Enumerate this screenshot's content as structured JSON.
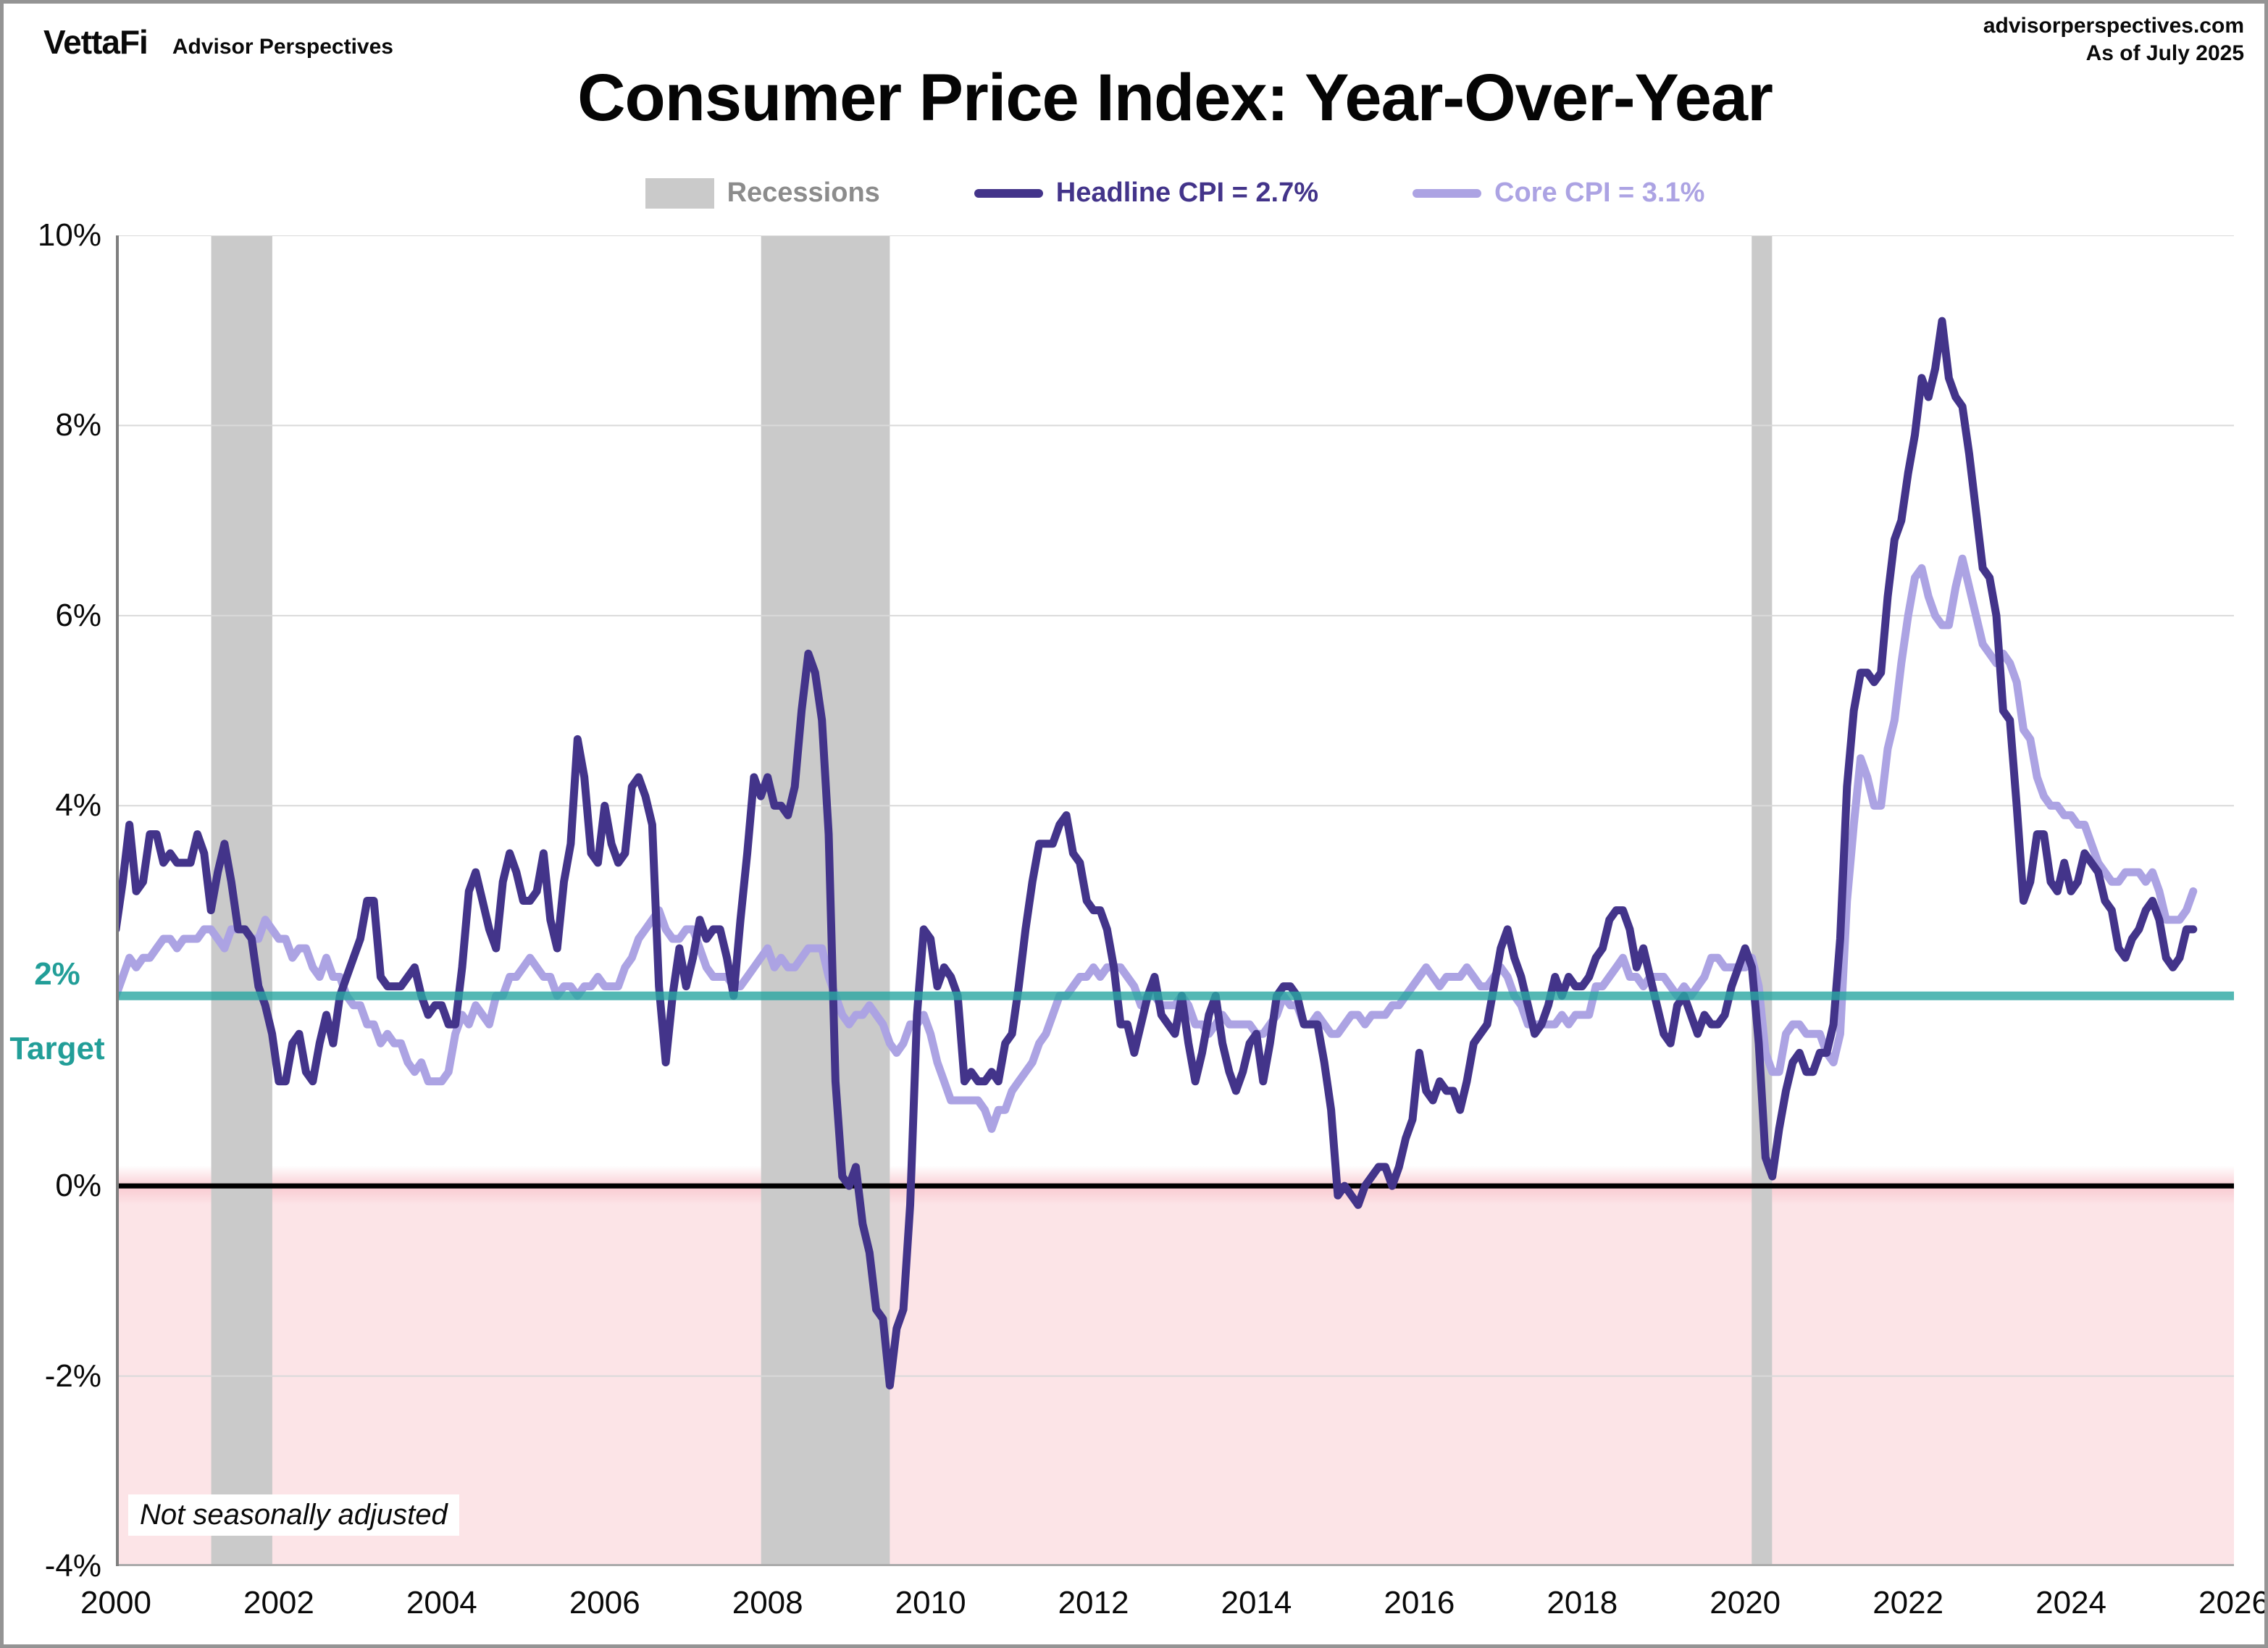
{
  "header": {
    "logo_brand": "VettaFi",
    "logo_sub": "Advisor Perspectives",
    "site": "advisorperspectives.com",
    "as_of": "As of July 2025"
  },
  "title": "Consumer Price Index: Year-Over-Year",
  "legend": {
    "recessions_label": "Recessions",
    "headline_label": "Headline CPI = 2.7%",
    "core_label": "Core CPI =  3.1%"
  },
  "annotations": {
    "target_line_1": "2%",
    "target_line_2": "Target",
    "footnote": "Not seasonally adjusted"
  },
  "chart_data": {
    "type": "line",
    "title": "Consumer Price Index: Year-Over-Year",
    "frequency": "monthly",
    "start": "2000-01",
    "end": "2025-07",
    "x_start_year": 2000,
    "x_end_year": 2026,
    "x_ticks": [
      2000,
      2002,
      2004,
      2006,
      2008,
      2010,
      2012,
      2014,
      2016,
      2018,
      2020,
      2022,
      2024,
      2026
    ],
    "ylim": [
      -4,
      10
    ],
    "y_ticks": [
      {
        "value": 10,
        "label": "10%"
      },
      {
        "value": 8,
        "label": "8%"
      },
      {
        "value": 6,
        "label": "6%"
      },
      {
        "value": 4,
        "label": "4%"
      },
      {
        "value": 0,
        "label": "0%"
      },
      {
        "value": -2,
        "label": "-2%"
      },
      {
        "value": -4,
        "label": "-4%"
      }
    ],
    "y_gridlines": [
      10,
      8,
      6,
      4,
      -2
    ],
    "target_value": 2,
    "zero_value": 0,
    "recessions": [
      {
        "start": 2001.17,
        "end": 2001.92
      },
      {
        "start": 2007.92,
        "end": 2009.5
      },
      {
        "start": 2020.08,
        "end": 2020.33
      }
    ],
    "colors": {
      "headline": "#43348A",
      "core": "#ACA3E3",
      "target": "#2AA7A2",
      "target_text": "#229E98",
      "recession": "#CACACA",
      "recession_text": "#8C8C8C",
      "below_zero_fill": "#FCE4E7",
      "gridline": "#D9D9D9",
      "zero_line": "#000000",
      "axis": "#7F7F7F",
      "bottom_axis": "#ABABAB"
    },
    "series": [
      {
        "name": "Headline CPI",
        "latest": 2.7,
        "values": [
          2.7,
          3.2,
          3.8,
          3.1,
          3.2,
          3.7,
          3.7,
          3.4,
          3.5,
          3.4,
          3.4,
          3.4,
          3.7,
          3.5,
          2.9,
          3.3,
          3.6,
          3.2,
          2.7,
          2.7,
          2.6,
          2.1,
          1.9,
          1.6,
          1.1,
          1.1,
          1.5,
          1.6,
          1.2,
          1.1,
          1.5,
          1.8,
          1.5,
          2.0,
          2.2,
          2.4,
          2.6,
          3.0,
          3.0,
          2.2,
          2.1,
          2.1,
          2.1,
          2.2,
          2.3,
          2.0,
          1.8,
          1.9,
          1.9,
          1.7,
          1.7,
          2.3,
          3.1,
          3.3,
          3.0,
          2.7,
          2.5,
          3.2,
          3.5,
          3.3,
          3.0,
          3.0,
          3.1,
          3.5,
          2.8,
          2.5,
          3.2,
          3.6,
          4.7,
          4.3,
          3.5,
          3.4,
          4.0,
          3.6,
          3.4,
          3.5,
          4.2,
          4.3,
          4.1,
          3.8,
          2.1,
          1.3,
          2.0,
          2.5,
          2.1,
          2.4,
          2.8,
          2.6,
          2.7,
          2.7,
          2.4,
          2.0,
          2.8,
          3.5,
          4.3,
          4.1,
          4.3,
          4.0,
          4.0,
          3.9,
          4.2,
          5.0,
          5.6,
          5.4,
          4.9,
          3.7,
          1.1,
          0.1,
          0.0,
          0.2,
          -0.4,
          -0.7,
          -1.3,
          -1.4,
          -2.1,
          -1.5,
          -1.3,
          -0.2,
          1.8,
          2.7,
          2.6,
          2.1,
          2.3,
          2.2,
          2.0,
          1.1,
          1.2,
          1.1,
          1.1,
          1.2,
          1.1,
          1.5,
          1.6,
          2.1,
          2.7,
          3.2,
          3.6,
          3.6,
          3.6,
          3.8,
          3.9,
          3.5,
          3.4,
          3.0,
          2.9,
          2.9,
          2.7,
          2.3,
          1.7,
          1.7,
          1.4,
          1.7,
          2.0,
          2.2,
          1.8,
          1.7,
          1.6,
          2.0,
          1.5,
          1.1,
          1.4,
          1.8,
          2.0,
          1.5,
          1.2,
          1.0,
          1.2,
          1.5,
          1.6,
          1.1,
          1.5,
          2.0,
          2.1,
          2.1,
          2.0,
          1.7,
          1.7,
          1.7,
          1.3,
          0.8,
          -0.1,
          0.0,
          -0.1,
          -0.2,
          0.0,
          0.1,
          0.2,
          0.2,
          0.0,
          0.2,
          0.5,
          0.7,
          1.4,
          1.0,
          0.9,
          1.1,
          1.0,
          1.0,
          0.8,
          1.1,
          1.5,
          1.6,
          1.7,
          2.1,
          2.5,
          2.7,
          2.4,
          2.2,
          1.9,
          1.6,
          1.7,
          1.9,
          2.2,
          2.0,
          2.2,
          2.1,
          2.1,
          2.2,
          2.4,
          2.5,
          2.8,
          2.9,
          2.9,
          2.7,
          2.3,
          2.5,
          2.2,
          1.9,
          1.6,
          1.5,
          1.9,
          2.0,
          1.8,
          1.6,
          1.8,
          1.7,
          1.7,
          1.8,
          2.1,
          2.3,
          2.5,
          2.3,
          1.5,
          0.3,
          0.1,
          0.6,
          1.0,
          1.3,
          1.4,
          1.2,
          1.2,
          1.4,
          1.4,
          1.7,
          2.6,
          4.2,
          5.0,
          5.4,
          5.4,
          5.3,
          5.4,
          6.2,
          6.8,
          7.0,
          7.5,
          7.9,
          8.5,
          8.3,
          8.6,
          9.1,
          8.5,
          8.3,
          8.2,
          7.7,
          7.1,
          6.5,
          6.4,
          6.0,
          5.0,
          4.9,
          4.0,
          3.0,
          3.2,
          3.7,
          3.7,
          3.2,
          3.1,
          3.4,
          3.1,
          3.2,
          3.5,
          3.4,
          3.3,
          3.0,
          2.9,
          2.5,
          2.4,
          2.6,
          2.7,
          2.9,
          3.0,
          2.8,
          2.4,
          2.3,
          2.4,
          2.7,
          2.7
        ]
      },
      {
        "name": "Core CPI",
        "latest": 3.1,
        "values": [
          2.0,
          2.2,
          2.4,
          2.3,
          2.4,
          2.4,
          2.5,
          2.6,
          2.6,
          2.5,
          2.6,
          2.6,
          2.6,
          2.7,
          2.7,
          2.6,
          2.5,
          2.7,
          2.7,
          2.7,
          2.6,
          2.6,
          2.8,
          2.7,
          2.6,
          2.6,
          2.4,
          2.5,
          2.5,
          2.3,
          2.2,
          2.4,
          2.2,
          2.2,
          2.0,
          1.9,
          1.9,
          1.7,
          1.7,
          1.5,
          1.6,
          1.5,
          1.5,
          1.3,
          1.2,
          1.3,
          1.1,
          1.1,
          1.1,
          1.2,
          1.6,
          1.8,
          1.7,
          1.9,
          1.8,
          1.7,
          2.0,
          2.0,
          2.2,
          2.2,
          2.3,
          2.4,
          2.3,
          2.2,
          2.2,
          2.0,
          2.1,
          2.1,
          2.0,
          2.1,
          2.1,
          2.2,
          2.1,
          2.1,
          2.1,
          2.3,
          2.4,
          2.6,
          2.7,
          2.8,
          2.9,
          2.7,
          2.6,
          2.6,
          2.7,
          2.7,
          2.5,
          2.3,
          2.2,
          2.2,
          2.2,
          2.1,
          2.1,
          2.2,
          2.3,
          2.4,
          2.5,
          2.3,
          2.4,
          2.3,
          2.3,
          2.4,
          2.5,
          2.5,
          2.5,
          2.2,
          2.0,
          1.8,
          1.7,
          1.8,
          1.8,
          1.9,
          1.8,
          1.7,
          1.5,
          1.4,
          1.5,
          1.7,
          1.7,
          1.8,
          1.6,
          1.3,
          1.1,
          0.9,
          0.9,
          0.9,
          0.9,
          0.9,
          0.8,
          0.6,
          0.8,
          0.8,
          1.0,
          1.1,
          1.2,
          1.3,
          1.5,
          1.6,
          1.8,
          2.0,
          2.0,
          2.1,
          2.2,
          2.2,
          2.3,
          2.2,
          2.3,
          2.3,
          2.3,
          2.2,
          2.1,
          1.9,
          2.0,
          2.0,
          1.9,
          1.9,
          1.9,
          2.0,
          1.9,
          1.7,
          1.7,
          1.6,
          1.7,
          1.8,
          1.7,
          1.7,
          1.7,
          1.7,
          1.6,
          1.6,
          1.7,
          1.8,
          2.0,
          1.9,
          1.9,
          1.7,
          1.7,
          1.8,
          1.7,
          1.6,
          1.6,
          1.7,
          1.8,
          1.8,
          1.7,
          1.8,
          1.8,
          1.8,
          1.9,
          1.9,
          2.0,
          2.1,
          2.2,
          2.3,
          2.2,
          2.1,
          2.2,
          2.2,
          2.2,
          2.3,
          2.2,
          2.1,
          2.1,
          2.2,
          2.3,
          2.2,
          2.0,
          1.9,
          1.7,
          1.7,
          1.7,
          1.7,
          1.7,
          1.8,
          1.7,
          1.8,
          1.8,
          1.8,
          2.1,
          2.1,
          2.2,
          2.3,
          2.4,
          2.2,
          2.2,
          2.1,
          2.2,
          2.2,
          2.2,
          2.1,
          2.0,
          2.1,
          2.0,
          2.1,
          2.2,
          2.4,
          2.4,
          2.3,
          2.3,
          2.3,
          2.3,
          2.4,
          2.1,
          1.4,
          1.2,
          1.2,
          1.6,
          1.7,
          1.7,
          1.6,
          1.6,
          1.6,
          1.4,
          1.3,
          1.6,
          3.0,
          3.8,
          4.5,
          4.3,
          4.0,
          4.0,
          4.6,
          4.9,
          5.5,
          6.0,
          6.4,
          6.5,
          6.2,
          6.0,
          5.9,
          5.9,
          6.3,
          6.6,
          6.3,
          6.0,
          5.7,
          5.6,
          5.5,
          5.6,
          5.5,
          5.3,
          4.8,
          4.7,
          4.3,
          4.1,
          4.0,
          4.0,
          3.9,
          3.9,
          3.8,
          3.8,
          3.6,
          3.4,
          3.3,
          3.2,
          3.2,
          3.3,
          3.3,
          3.3,
          3.2,
          3.3,
          3.1,
          2.8,
          2.8,
          2.8,
          2.9,
          3.1
        ]
      }
    ]
  }
}
